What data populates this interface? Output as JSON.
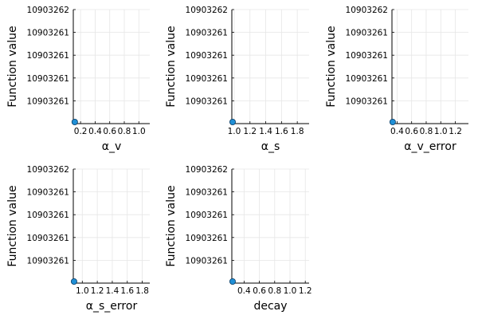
{
  "chart_data": [
    {
      "type": "scatter",
      "title": "",
      "xlabel": "α_v",
      "ylabel": "Function value",
      "xlim": [
        0.1,
        1.15
      ],
      "xticks": [
        "0.2",
        "0.4",
        "0.6",
        "0.8",
        "1.0"
      ],
      "xtick_values": [
        0.2,
        0.4,
        0.6,
        0.8,
        1.0
      ],
      "ylim": [
        0,
        5
      ],
      "yticks": [
        "10903261",
        "10903261",
        "10903261",
        "10903261",
        "10903262"
      ],
      "ytick_values": [
        1,
        2,
        3,
        4,
        5
      ],
      "points": [
        {
          "x": 0.12,
          "y": 0
        }
      ],
      "grid": true,
      "legend": "none"
    },
    {
      "type": "scatter",
      "title": "",
      "xlabel": "α_s",
      "ylabel": "Function value",
      "xlim": [
        0.97,
        1.95
      ],
      "xticks": [
        "1.0",
        "1.2",
        "1.4",
        "1.6",
        "1.8"
      ],
      "xtick_values": [
        1.0,
        1.2,
        1.4,
        1.6,
        1.8
      ],
      "ylim": [
        0,
        5
      ],
      "yticks": [
        "10903261",
        "10903261",
        "10903261",
        "10903261",
        "10903262"
      ],
      "ytick_values": [
        1,
        2,
        3,
        4,
        5
      ],
      "points": [
        {
          "x": 0.98,
          "y": 0
        }
      ],
      "grid": true,
      "legend": "none"
    },
    {
      "type": "scatter",
      "title": "",
      "xlabel": "α_v_error",
      "ylabel": "Function value",
      "xlim": [
        0.33,
        1.38
      ],
      "xticks": [
        "0.4",
        "0.6",
        "0.8",
        "1.0",
        "1.2"
      ],
      "xtick_values": [
        0.4,
        0.6,
        0.8,
        1.0,
        1.2
      ],
      "ylim": [
        0,
        5
      ],
      "yticks": [
        "10903261",
        "10903261",
        "10903261",
        "10903261",
        "10903262"
      ],
      "ytick_values": [
        1,
        2,
        3,
        4,
        5
      ],
      "points": [
        {
          "x": 0.34,
          "y": 0
        }
      ],
      "grid": true,
      "legend": "none"
    },
    {
      "type": "scatter",
      "title": "",
      "xlabel": "α_s_error",
      "ylabel": "Function value",
      "xlim": [
        0.88,
        1.9
      ],
      "xticks": [
        "1.0",
        "1.2",
        "1.4",
        "1.6",
        "1.8"
      ],
      "xtick_values": [
        1.0,
        1.2,
        1.4,
        1.6,
        1.8
      ],
      "ylim": [
        0,
        5
      ],
      "yticks": [
        "10903261",
        "10903261",
        "10903261",
        "10903261",
        "10903262"
      ],
      "ytick_values": [
        1,
        2,
        3,
        4,
        5
      ],
      "points": [
        {
          "x": 0.89,
          "y": 0
        }
      ],
      "grid": true,
      "legend": "none"
    },
    {
      "type": "scatter",
      "title": "",
      "xlabel": "decay",
      "ylabel": "Function value",
      "xlim": [
        0.24,
        1.25
      ],
      "xticks": [
        "0.4",
        "0.6",
        "0.8",
        "1.0",
        "1.2"
      ],
      "xtick_values": [
        0.4,
        0.6,
        0.8,
        1.0,
        1.2
      ],
      "ylim": [
        0,
        5
      ],
      "yticks": [
        "10903261",
        "10903261",
        "10903261",
        "10903261",
        "10903262"
      ],
      "ytick_values": [
        1,
        2,
        3,
        4,
        5
      ],
      "points": [
        {
          "x": 0.25,
          "y": 0
        }
      ],
      "grid": true,
      "legend": "none"
    }
  ],
  "colors": {
    "marker_fill": "#1f8fd6",
    "marker_stroke": "#0b3d66",
    "grid": "#e6e6e6",
    "axis": "#000000"
  }
}
